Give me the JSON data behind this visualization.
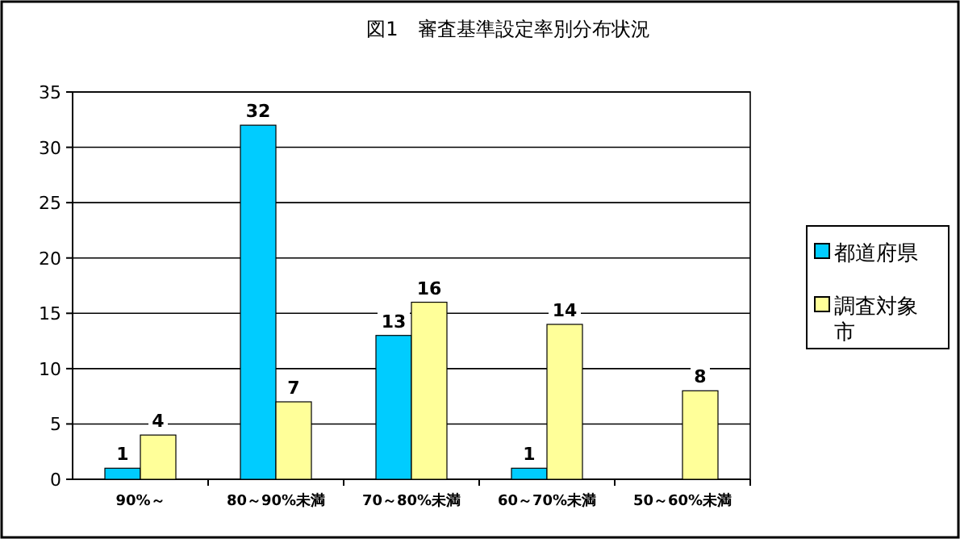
{
  "chart_data": {
    "type": "bar",
    "title": "図1　審査基準設定率別分布状況",
    "categories": [
      "90%～",
      "80～90%未満",
      "70～80%未満",
      "60～70%未満",
      "50～60%未満"
    ],
    "series": [
      {
        "name": "都道府県",
        "color": "#00ccff",
        "values": [
          1,
          32,
          13,
          1,
          null
        ]
      },
      {
        "name": "調査対象市",
        "color": "#ffff99",
        "values": [
          4,
          7,
          16,
          14,
          8
        ]
      }
    ],
    "ylim": [
      0,
      35
    ],
    "yticks": [
      0,
      5,
      10,
      15,
      20,
      25,
      30,
      35
    ],
    "grid": "y",
    "legend": "right",
    "data_labels": true
  }
}
